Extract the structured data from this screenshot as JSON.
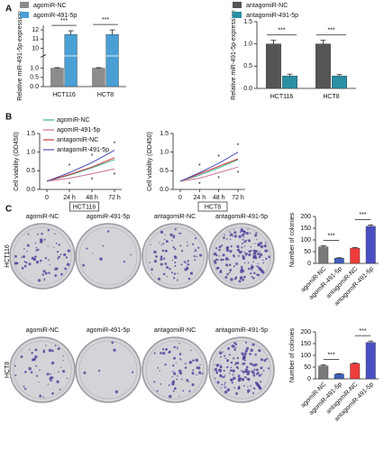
{
  "panel_labels": [
    "A",
    "B",
    "C"
  ],
  "images": {
    "rows": [
      {
        "label": "HCT116",
        "columns": [
          "agomiR-NC",
          "agomiR-491-5p",
          "antagomiR-NC",
          "antagomiR-491-5p"
        ]
      },
      {
        "label": "HCT8",
        "columns": [
          "agomiR-NC",
          "agomiR-491-5p",
          "antagomiR-NC",
          "antagomiR-491-5p"
        ]
      }
    ]
  },
  "chart_data": [
    {
      "type": "bar",
      "ylabel": "Relative miR-491-5p expression",
      "categories": [
        "HCT116",
        "HCT8"
      ],
      "series": [
        {
          "name": "agomiR-NC",
          "color": "#8c8c8c",
          "values": [
            1.0,
            1.0
          ],
          "errors": [
            0.03,
            0.03
          ]
        },
        {
          "name": "agomiR-491-5p",
          "color": "#4a9fd4",
          "values": [
            11.5,
            11.5
          ],
          "errors": [
            0.4,
            0.5
          ]
        }
      ],
      "ylim": [
        0,
        12.5
      ],
      "axis_break": [
        1.5,
        9.5
      ],
      "yticks": [
        {
          "value": 0,
          "label": "0.0"
        },
        0.5,
        {
          "value": 1,
          "label": "1.0"
        },
        10,
        11,
        12
      ],
      "annotations": [
        "***",
        "***"
      ]
    },
    {
      "type": "bar",
      "ylabel": "Relative miR-491-5p expression",
      "categories": [
        "HCT116",
        "HCT8"
      ],
      "series": [
        {
          "name": "antagomiR-NC",
          "color": "#555555",
          "values": [
            1.0,
            1.0
          ],
          "errors": [
            0.08,
            0.08
          ]
        },
        {
          "name": "antagomiR-491-5p",
          "color": "#2a8fa3",
          "values": [
            0.28,
            0.28
          ],
          "errors": [
            0.04,
            0.03
          ]
        }
      ],
      "ylim": [
        0,
        1.5
      ],
      "yticks": [
        {
          "value": 0,
          "label": "0.0"
        },
        0.5,
        {
          "value": 1,
          "label": "1.0"
        },
        1.5
      ],
      "annotations": [
        "***",
        "***"
      ]
    },
    {
      "type": "line",
      "ylabel": "Cell viability (OD450)",
      "xlabel": "HCT116",
      "categories": [
        "0",
        "24 h",
        "48 h",
        "72 h"
      ],
      "series": [
        {
          "name": "agomiR-NC",
          "color": "#3cb08a",
          "values": [
            0.22,
            0.38,
            0.58,
            0.8
          ]
        },
        {
          "name": "agomiR-491-5p",
          "color": "#d0709a",
          "values": [
            0.22,
            0.3,
            0.42,
            0.55
          ]
        },
        {
          "name": "antagomiR-NC",
          "color": "#d23a3a",
          "values": [
            0.22,
            0.4,
            0.6,
            0.85
          ]
        },
        {
          "name": "antagomiR-491-5p",
          "color": "#4a4fb8",
          "values": [
            0.22,
            0.45,
            0.72,
            1.05
          ]
        }
      ],
      "ylim": [
        0,
        1.5
      ],
      "yticks": [
        {
          "value": 0,
          "label": "0.0"
        },
        0.5,
        {
          "value": 1,
          "label": "1.0"
        },
        1.5
      ],
      "annotations": [
        "*",
        "*",
        "*",
        "*",
        "*",
        "*"
      ]
    },
    {
      "type": "line",
      "ylabel": "Cell viability (OD450)",
      "xlabel": "HCT8",
      "categories": [
        "0",
        "24 h",
        "48 h",
        "72 h"
      ],
      "series": [
        {
          "color": "#3cb08a",
          "values": [
            0.22,
            0.38,
            0.58,
            0.8
          ]
        },
        {
          "color": "#d0709a",
          "values": [
            0.22,
            0.3,
            0.45,
            0.6
          ]
        },
        {
          "color": "#d23a3a",
          "values": [
            0.22,
            0.42,
            0.62,
            0.82
          ]
        },
        {
          "color": "#4a4fb8",
          "values": [
            0.22,
            0.45,
            0.7,
            1.0
          ]
        }
      ],
      "ylim": [
        0,
        1.5
      ],
      "yticks": [
        {
          "value": 0,
          "label": "0.0"
        },
        0.5,
        {
          "value": 1,
          "label": "1.0"
        },
        1.5
      ],
      "annotations": [
        "*",
        "*",
        "*",
        "*",
        "*",
        "*"
      ]
    },
    {
      "type": "bar",
      "ylabel": "Number of colonies",
      "categories": [
        "agomiR-NC",
        "agomiR-491-5p",
        "antagomiR-NC",
        "antagomiR-491-5p"
      ],
      "values": [
        70,
        22,
        65,
        158
      ],
      "errors": [
        5,
        2,
        3,
        6
      ],
      "colors": [
        "#7a7a7a",
        "#3f5fbf",
        "#ee3b3b",
        "#4a4fc4"
      ],
      "ylim": [
        0,
        200
      ],
      "yticks": [
        0,
        50,
        100,
        150,
        200
      ],
      "annotations": [
        "***",
        "***"
      ]
    },
    {
      "type": "bar",
      "ylabel": "Number of colonies",
      "categories": [
        "agomiR-NC",
        "agomiR-491-5p",
        "antagomiR-NC",
        "antagomiR-491-5p"
      ],
      "values": [
        55,
        20,
        65,
        155
      ],
      "errors": [
        4,
        2,
        3,
        6
      ],
      "colors": [
        "#7a7a7a",
        "#3f5fbf",
        "#ee3b3b",
        "#4a4fc4"
      ],
      "ylim": [
        0,
        200
      ],
      "yticks": [
        0,
        50,
        100,
        150,
        200
      ],
      "annotations": [
        "***",
        "***"
      ]
    }
  ]
}
